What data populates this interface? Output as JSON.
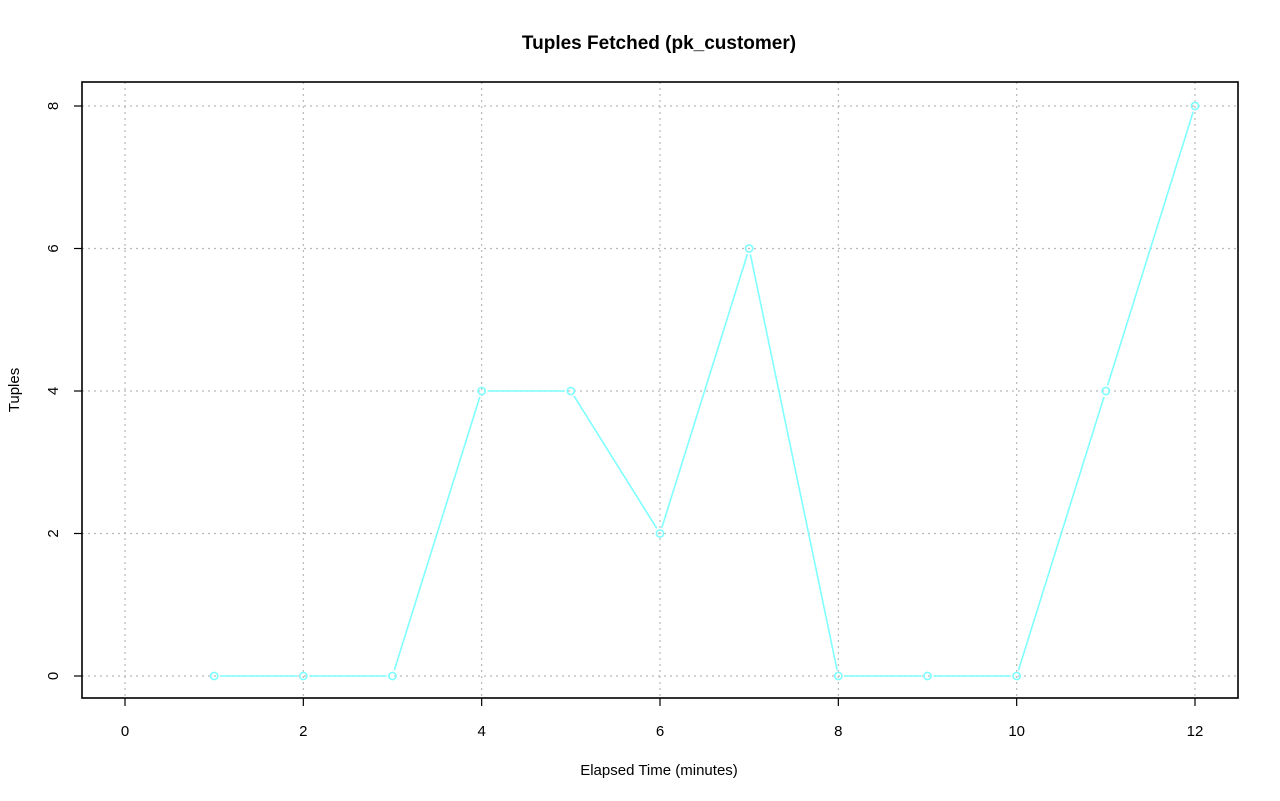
{
  "chart_data": {
    "type": "line",
    "title": "Tuples Fetched (pk_customer)",
    "xlabel": "Elapsed Time (minutes)",
    "ylabel": "Tuples",
    "xlim": [
      0,
      12
    ],
    "ylim": [
      0,
      8
    ],
    "x_ticks": [
      "0",
      "2",
      "4",
      "6",
      "8",
      "10",
      "12"
    ],
    "y_ticks": [
      "0",
      "2",
      "4",
      "6",
      "8"
    ],
    "grid": true,
    "series": [
      {
        "color": "#7fffff",
        "x": [
          1,
          2,
          3,
          4,
          5,
          6,
          7,
          8,
          9,
          10,
          11,
          12
        ],
        "y": [
          0,
          0,
          0,
          4,
          4,
          2,
          6,
          0,
          0,
          0,
          4,
          8
        ]
      }
    ]
  }
}
